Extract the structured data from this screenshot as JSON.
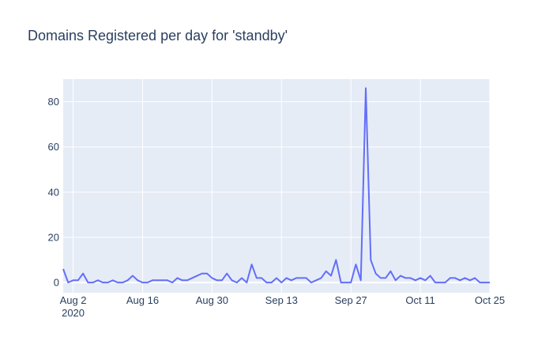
{
  "chart_data": {
    "type": "line",
    "title": "Domains Registered per day for 'standby'",
    "xlabel": "",
    "ylabel": "",
    "x_start": "2020-07-31",
    "x_end": "2020-10-25",
    "xlim": [
      "2020-07-31",
      "2020-10-25"
    ],
    "ylim": [
      -4.5,
      90
    ],
    "grid": true,
    "colors": {
      "line": "#636efa",
      "plot_bg": "#e5ecf6",
      "grid": "#ffffff",
      "text": "#2a3f5f"
    },
    "x_ticks": [
      {
        "date": "2020-08-02",
        "label": "Aug 2",
        "sublabel": "2020"
      },
      {
        "date": "2020-08-16",
        "label": "Aug 16"
      },
      {
        "date": "2020-08-30",
        "label": "Aug 30"
      },
      {
        "date": "2020-09-13",
        "label": "Sep 13"
      },
      {
        "date": "2020-09-27",
        "label": "Sep 27"
      },
      {
        "date": "2020-10-11",
        "label": "Oct 11"
      },
      {
        "date": "2020-10-25",
        "label": "Oct 25"
      }
    ],
    "y_ticks": [
      {
        "value": 0,
        "label": "0"
      },
      {
        "value": 20,
        "label": "20"
      },
      {
        "value": 40,
        "label": "40"
      },
      {
        "value": 60,
        "label": "60"
      },
      {
        "value": 80,
        "label": "80"
      }
    ],
    "series": [
      {
        "name": "",
        "color": "#636efa",
        "values": [
          6,
          0,
          1,
          1,
          4,
          0,
          0,
          1,
          0,
          0,
          1,
          0,
          0,
          1,
          3,
          1,
          0,
          0,
          1,
          1,
          1,
          1,
          0,
          2,
          1,
          1,
          2,
          3,
          4,
          4,
          2,
          1,
          1,
          4,
          1,
          0,
          2,
          0,
          8,
          2,
          2,
          0,
          0,
          2,
          0,
          2,
          1,
          2,
          2,
          2,
          0,
          1,
          2,
          5,
          3,
          10,
          0,
          0,
          0,
          8,
          1,
          86,
          10,
          4,
          2,
          2,
          5,
          1,
          3,
          2,
          2,
          1,
          2,
          1,
          3,
          0,
          0,
          0,
          2,
          2,
          1,
          2,
          1,
          2,
          0,
          0,
          0
        ]
      }
    ]
  }
}
